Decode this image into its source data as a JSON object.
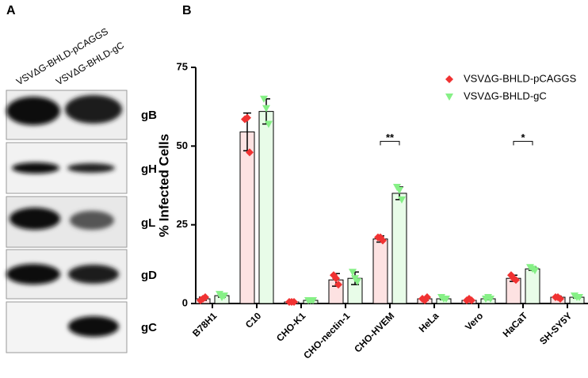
{
  "panel_a": {
    "label": "A",
    "lanes": [
      "VSVΔG-BHLD-pCAGGS",
      "VSVΔG-BHLD-gC"
    ],
    "rows": [
      "gB",
      "gH",
      "gL",
      "gD",
      "gC"
    ]
  },
  "chart_data": {
    "type": "bar",
    "panel_label": "B",
    "y_label": "% Infected Cells",
    "categories": [
      "B78H1",
      "C10",
      "CHO-K1",
      "CHO-nectin-1",
      "CHO-HVEM",
      "HeLa",
      "Vero",
      "HaCaT",
      "SH-SY5Y"
    ],
    "series": [
      {
        "name": "VSVΔG-BHLD-pCAGGS",
        "color": "#f03232",
        "fill": "#fde2e2",
        "values": [
          1.5,
          54.5,
          0.5,
          7.5,
          20.5,
          1.5,
          1,
          8,
          2
        ],
        "errors": [
          0.5,
          6,
          0.2,
          2,
          1,
          0.5,
          0.3,
          1,
          0.3
        ],
        "points": [
          [
            1,
            1.5,
            2
          ],
          [
            58.5,
            59,
            48
          ],
          [
            0.5,
            0.5,
            0.5
          ],
          [
            9,
            8,
            6
          ],
          [
            21,
            21,
            20
          ],
          [
            1.5,
            1,
            2
          ],
          [
            1,
            1.5,
            1
          ],
          [
            9,
            8,
            7.5
          ],
          [
            2,
            2,
            1.5
          ]
        ]
      },
      {
        "name": "VSVΔG-BHLD-gC",
        "color": "#86f086",
        "fill": "#e8fce8",
        "values": [
          2.5,
          61,
          1,
          8,
          35,
          1.5,
          1.5,
          11,
          2
        ],
        "errors": [
          0.5,
          4,
          0.2,
          2,
          2,
          0.3,
          0.3,
          0.5,
          0.3
        ],
        "points": [
          [
            3,
            2,
            2.5
          ],
          [
            65,
            62,
            57
          ],
          [
            1,
            1,
            1
          ],
          [
            10,
            8,
            7
          ],
          [
            37,
            36,
            33
          ],
          [
            2,
            1.5,
            1.5
          ],
          [
            1.5,
            2,
            1.5
          ],
          [
            11.5,
            11,
            10.5
          ],
          [
            2.5,
            2,
            2
          ]
        ]
      }
    ],
    "ylim": [
      0,
      75
    ],
    "yticks": [
      0,
      25,
      50,
      75
    ],
    "annotations": [
      {
        "text": "**",
        "category": 4,
        "y": 51.5
      },
      {
        "text": "*",
        "category": 7,
        "y": 51.5
      }
    ]
  }
}
